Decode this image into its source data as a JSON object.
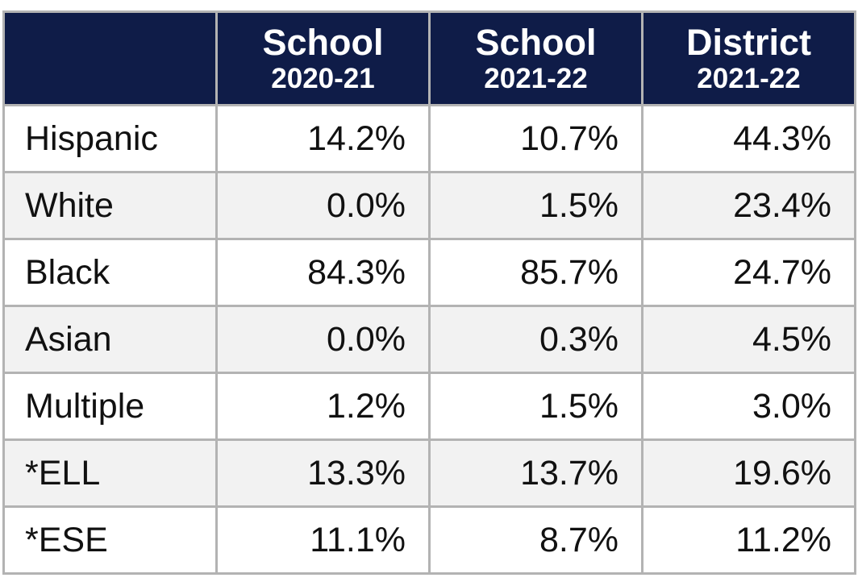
{
  "chart_data": {
    "type": "table",
    "columns": [
      {
        "line1": "",
        "line2": ""
      },
      {
        "line1": "School",
        "line2": "2020-21"
      },
      {
        "line1": "School",
        "line2": "2021-22"
      },
      {
        "line1": "District",
        "line2": "2021-22"
      }
    ],
    "rows": [
      {
        "label": "Hispanic",
        "values": [
          "14.2%",
          "10.7%",
          "44.3%"
        ]
      },
      {
        "label": "White",
        "values": [
          "0.0%",
          "1.5%",
          "23.4%"
        ]
      },
      {
        "label": "Black",
        "values": [
          "84.3%",
          "85.7%",
          "24.7%"
        ]
      },
      {
        "label": "Asian",
        "values": [
          "0.0%",
          "0.3%",
          "4.5%"
        ]
      },
      {
        "label": "Multiple",
        "values": [
          "1.2%",
          "1.5%",
          "3.0%"
        ]
      },
      {
        "label": "*ELL",
        "values": [
          "13.3%",
          "13.7%",
          "19.6%"
        ]
      },
      {
        "label": "*ESE",
        "values": [
          "11.1%",
          "8.7%",
          "11.2%"
        ]
      }
    ],
    "colors": {
      "header_bg": "#0f1c48",
      "header_text": "#ffffff",
      "border": "#b3b3b3",
      "alt_row": "#f2f2f2"
    }
  }
}
